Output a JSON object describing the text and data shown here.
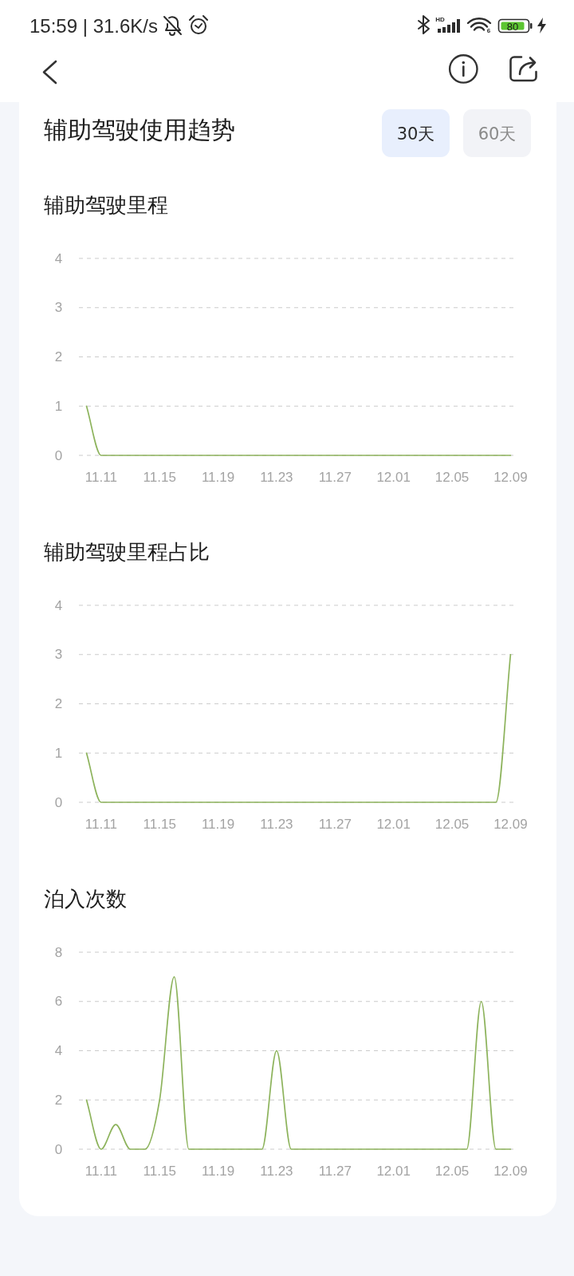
{
  "chart_data": [
    {
      "type": "other",
      "title": "辅助驾驶使用趋势",
      "annotations": [
        "15:59 | 31.6K/s",
        "HD",
        "6",
        "80",
        "30天",
        "60天"
      ]
    },
    {
      "type": "line",
      "title": "辅助驾驶里程",
      "categories": [
        null,
        "11.11",
        null,
        null,
        null,
        "11.15",
        null,
        null,
        null,
        "11.19",
        null,
        null,
        null,
        "11.23",
        null,
        null,
        null,
        "11.27",
        null,
        null,
        null,
        "12.01",
        null,
        null,
        null,
        "12.05",
        null,
        null,
        null,
        "12.09"
      ],
      "values": [
        1,
        0,
        0,
        0,
        0,
        0,
        0,
        0,
        0,
        0,
        0,
        0,
        0,
        0,
        0,
        0,
        0,
        0,
        0,
        0,
        0,
        0,
        0,
        0,
        0,
        0,
        0,
        0,
        0,
        0
      ],
      "color": "#8db35c",
      "ylim": [
        0,
        4
      ],
      "yticks": [
        0,
        1,
        2,
        3,
        4
      ],
      "grid": "y"
    },
    {
      "type": "line",
      "title": "辅助驾驶里程占比",
      "categories": [
        null,
        "11.11",
        null,
        null,
        null,
        "11.15",
        null,
        null,
        null,
        "11.19",
        null,
        null,
        null,
        "11.23",
        null,
        null,
        null,
        "11.27",
        null,
        null,
        null,
        "12.01",
        null,
        null,
        null,
        "12.05",
        null,
        null,
        null,
        "12.09"
      ],
      "values": [
        1,
        0,
        0,
        0,
        0,
        0,
        0,
        0,
        0,
        0,
        0,
        0,
        0,
        0,
        0,
        0,
        0,
        0,
        0,
        0,
        0,
        0,
        0,
        0,
        0,
        0,
        0,
        0,
        0,
        3
      ],
      "color": "#8db35c",
      "ylim": [
        0,
        4
      ],
      "yticks": [
        0,
        1,
        2,
        3,
        4
      ],
      "grid": "y"
    },
    {
      "type": "line",
      "title": "泊入次数",
      "categories": [
        null,
        "11.11",
        null,
        null,
        null,
        "11.15",
        null,
        null,
        null,
        "11.19",
        null,
        null,
        null,
        "11.23",
        null,
        null,
        null,
        "11.27",
        null,
        null,
        null,
        "12.01",
        null,
        null,
        null,
        "12.05",
        null,
        null,
        null,
        "12.09"
      ],
      "values": [
        2,
        0,
        1,
        0,
        0,
        2,
        7,
        0,
        0,
        0,
        0,
        0,
        0,
        4,
        0,
        0,
        0,
        0,
        0,
        0,
        0,
        0,
        0,
        0,
        0,
        0,
        0,
        6,
        0,
        0
      ],
      "color": "#8db35c",
      "ylim": [
        0,
        8
      ],
      "yticks": [
        0,
        2,
        4,
        6,
        8
      ],
      "grid": "y"
    }
  ]
}
